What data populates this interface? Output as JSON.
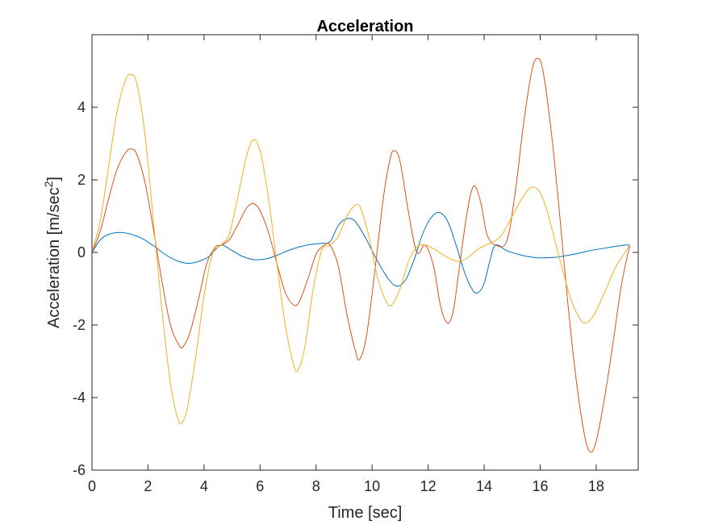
{
  "chart_data": {
    "type": "line",
    "title": "Acceleration",
    "xlabel": "Time [sec]",
    "ylabel_main": "Acceleration [m/sec",
    "ylabel_sup": "2",
    "ylabel_close": "]",
    "xlim": [
      0,
      19.5
    ],
    "ylim": [
      -6,
      6
    ],
    "xticks": [
      0,
      2,
      4,
      6,
      8,
      10,
      12,
      14,
      16,
      18
    ],
    "xtick_labels": [
      "0",
      "2",
      "4",
      "6",
      "8",
      "10",
      "12",
      "14",
      "16",
      "18"
    ],
    "yticks": [
      -6,
      -4,
      -2,
      0,
      2,
      4
    ],
    "ytick_labels": [
      "-6",
      "-4",
      "-2",
      "0",
      "2",
      "4"
    ],
    "grid": false,
    "legend": "none",
    "series": [
      {
        "color": "#0072BD",
        "points": [
          [
            0,
            0
          ],
          [
            0.3,
            0.35
          ],
          [
            0.6,
            0.5
          ],
          [
            1.0,
            0.55
          ],
          [
            1.4,
            0.5
          ],
          [
            1.8,
            0.38
          ],
          [
            2.2,
            0.18
          ],
          [
            2.6,
            -0.05
          ],
          [
            3.0,
            -0.22
          ],
          [
            3.4,
            -0.3
          ],
          [
            3.8,
            -0.25
          ],
          [
            4.2,
            -0.1
          ],
          [
            4.6,
            0.2
          ],
          [
            5.0,
            0.05
          ],
          [
            5.4,
            -0.12
          ],
          [
            5.8,
            -0.2
          ],
          [
            6.2,
            -0.18
          ],
          [
            6.6,
            -0.08
          ],
          [
            7.0,
            0.05
          ],
          [
            7.4,
            0.15
          ],
          [
            7.8,
            0.22
          ],
          [
            8.2,
            0.25
          ],
          [
            8.5,
            0.3
          ],
          [
            8.8,
            0.75
          ],
          [
            9.1,
            0.93
          ],
          [
            9.4,
            0.85
          ],
          [
            9.8,
            0.35
          ],
          [
            10.2,
            -0.25
          ],
          [
            10.6,
            -0.75
          ],
          [
            10.9,
            -0.93
          ],
          [
            11.2,
            -0.75
          ],
          [
            11.5,
            -0.2
          ],
          [
            11.8,
            0.5
          ],
          [
            12.1,
            0.95
          ],
          [
            12.4,
            1.1
          ],
          [
            12.7,
            0.85
          ],
          [
            13.0,
            0.2
          ],
          [
            13.3,
            -0.55
          ],
          [
            13.6,
            -1.05
          ],
          [
            13.8,
            -1.1
          ],
          [
            14.0,
            -0.85
          ],
          [
            14.2,
            -0.25
          ],
          [
            14.4,
            0.2
          ],
          [
            14.8,
            0.05
          ],
          [
            15.2,
            -0.05
          ],
          [
            15.6,
            -0.12
          ],
          [
            16.0,
            -0.15
          ],
          [
            16.6,
            -0.13
          ],
          [
            17.2,
            -0.05
          ],
          [
            17.8,
            0.05
          ],
          [
            18.4,
            0.13
          ],
          [
            19.0,
            0.2
          ],
          [
            19.2,
            0.2
          ]
        ]
      },
      {
        "color": "#D95319",
        "points": [
          [
            0,
            0
          ],
          [
            0.3,
            0.6
          ],
          [
            0.6,
            1.5
          ],
          [
            0.9,
            2.3
          ],
          [
            1.2,
            2.75
          ],
          [
            1.4,
            2.85
          ],
          [
            1.6,
            2.7
          ],
          [
            1.9,
            1.9
          ],
          [
            2.2,
            0.6
          ],
          [
            2.5,
            -0.8
          ],
          [
            2.8,
            -2.0
          ],
          [
            3.1,
            -2.55
          ],
          [
            3.25,
            -2.6
          ],
          [
            3.5,
            -2.2
          ],
          [
            3.8,
            -1.3
          ],
          [
            4.1,
            -0.3
          ],
          [
            4.4,
            0.15
          ],
          [
            4.6,
            0.2
          ],
          [
            4.9,
            0.35
          ],
          [
            5.2,
            0.75
          ],
          [
            5.5,
            1.2
          ],
          [
            5.75,
            1.35
          ],
          [
            6.0,
            1.15
          ],
          [
            6.3,
            0.55
          ],
          [
            6.6,
            -0.3
          ],
          [
            6.9,
            -1.1
          ],
          [
            7.2,
            -1.45
          ],
          [
            7.4,
            -1.35
          ],
          [
            7.7,
            -0.75
          ],
          [
            8.0,
            -0.05
          ],
          [
            8.3,
            0.2
          ],
          [
            8.5,
            0.2
          ],
          [
            8.8,
            -0.4
          ],
          [
            9.1,
            -1.7
          ],
          [
            9.4,
            -2.7
          ],
          [
            9.55,
            -2.95
          ],
          [
            9.8,
            -2.3
          ],
          [
            10.1,
            -0.5
          ],
          [
            10.4,
            1.5
          ],
          [
            10.65,
            2.6
          ],
          [
            10.8,
            2.8
          ],
          [
            11.0,
            2.5
          ],
          [
            11.3,
            1.1
          ],
          [
            11.6,
            0.0
          ],
          [
            11.9,
            0.2
          ],
          [
            12.2,
            -0.4
          ],
          [
            12.45,
            -1.5
          ],
          [
            12.7,
            -1.95
          ],
          [
            12.9,
            -1.6
          ],
          [
            13.1,
            -0.5
          ],
          [
            13.35,
            0.9
          ],
          [
            13.55,
            1.7
          ],
          [
            13.7,
            1.8
          ],
          [
            13.9,
            1.3
          ],
          [
            14.1,
            0.5
          ],
          [
            14.4,
            0.2
          ],
          [
            14.8,
            0.3
          ],
          [
            15.1,
            1.6
          ],
          [
            15.4,
            3.5
          ],
          [
            15.7,
            5.0
          ],
          [
            15.9,
            5.35
          ],
          [
            16.1,
            5.0
          ],
          [
            16.4,
            3.3
          ],
          [
            16.7,
            1.0
          ],
          [
            17.0,
            -1.5
          ],
          [
            17.3,
            -3.6
          ],
          [
            17.6,
            -5.1
          ],
          [
            17.8,
            -5.5
          ],
          [
            18.0,
            -5.2
          ],
          [
            18.3,
            -4.0
          ],
          [
            18.6,
            -2.5
          ],
          [
            18.9,
            -0.9
          ],
          [
            19.2,
            0.2
          ]
        ]
      },
      {
        "color": "#EDB120",
        "points": [
          [
            0,
            0
          ],
          [
            0.3,
            0.9
          ],
          [
            0.6,
            2.4
          ],
          [
            0.9,
            3.9
          ],
          [
            1.2,
            4.75
          ],
          [
            1.4,
            4.9
          ],
          [
            1.6,
            4.65
          ],
          [
            1.9,
            3.2
          ],
          [
            2.2,
            0.8
          ],
          [
            2.5,
            -1.6
          ],
          [
            2.8,
            -3.6
          ],
          [
            3.05,
            -4.55
          ],
          [
            3.2,
            -4.7
          ],
          [
            3.4,
            -4.3
          ],
          [
            3.7,
            -2.9
          ],
          [
            4.0,
            -1.2
          ],
          [
            4.3,
            -0.05
          ],
          [
            4.6,
            0.2
          ],
          [
            4.9,
            0.5
          ],
          [
            5.2,
            1.5
          ],
          [
            5.5,
            2.6
          ],
          [
            5.75,
            3.1
          ],
          [
            6.0,
            2.8
          ],
          [
            6.3,
            1.5
          ],
          [
            6.6,
            -0.3
          ],
          [
            6.9,
            -2.0
          ],
          [
            7.2,
            -3.1
          ],
          [
            7.35,
            -3.25
          ],
          [
            7.6,
            -2.6
          ],
          [
            7.9,
            -1.0
          ],
          [
            8.2,
            0.05
          ],
          [
            8.5,
            0.2
          ],
          [
            8.8,
            0.45
          ],
          [
            9.1,
            1.0
          ],
          [
            9.4,
            1.3
          ],
          [
            9.6,
            1.2
          ],
          [
            9.9,
            0.4
          ],
          [
            10.2,
            -0.7
          ],
          [
            10.5,
            -1.35
          ],
          [
            10.7,
            -1.45
          ],
          [
            11.0,
            -1.0
          ],
          [
            11.3,
            -0.25
          ],
          [
            11.6,
            0.15
          ],
          [
            11.9,
            0.2
          ],
          [
            12.2,
            0.1
          ],
          [
            12.5,
            -0.05
          ],
          [
            12.8,
            -0.18
          ],
          [
            13.1,
            -0.25
          ],
          [
            13.4,
            -0.15
          ],
          [
            13.8,
            0.1
          ],
          [
            14.2,
            0.25
          ],
          [
            14.6,
            0.45
          ],
          [
            15.0,
            1.0
          ],
          [
            15.4,
            1.55
          ],
          [
            15.7,
            1.8
          ],
          [
            16.0,
            1.65
          ],
          [
            16.3,
            1.0
          ],
          [
            16.7,
            -0.2
          ],
          [
            17.1,
            -1.3
          ],
          [
            17.4,
            -1.8
          ],
          [
            17.6,
            -1.95
          ],
          [
            17.9,
            -1.75
          ],
          [
            18.3,
            -1.1
          ],
          [
            18.7,
            -0.4
          ],
          [
            19.2,
            0.2
          ]
        ]
      }
    ]
  }
}
